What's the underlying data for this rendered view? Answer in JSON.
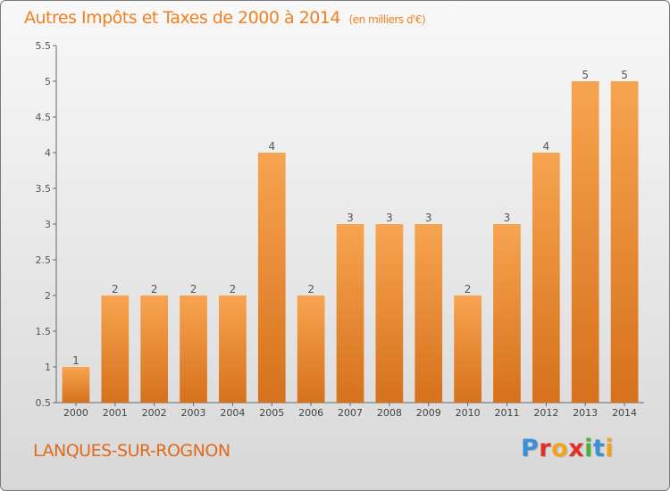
{
  "title": {
    "main": "Autres Impôts et Taxes de 2000 à 2014",
    "unit": "(en milliers d'€)"
  },
  "place_name": "LANQUES-SUR-ROGNON",
  "logo": {
    "letters": [
      "P",
      "r",
      "o",
      "x",
      "i",
      "t",
      "i"
    ],
    "colors": [
      "#3a8fd6",
      "#e0302a",
      "#f3a21c",
      "#e0302a",
      "#4caf3a",
      "#3a8fd6",
      "#f3a21c"
    ]
  },
  "colors": {
    "bar_top": "#f7a450",
    "bar_bottom": "#d6711c",
    "title": "#f08020"
  },
  "chart_data": {
    "type": "bar",
    "categories": [
      "2000",
      "2001",
      "2002",
      "2003",
      "2004",
      "2005",
      "2006",
      "2007",
      "2008",
      "2009",
      "2010",
      "2011",
      "2012",
      "2013",
      "2014"
    ],
    "values": [
      1,
      2,
      2,
      2,
      2,
      4,
      2,
      3,
      3,
      3,
      2,
      3,
      4,
      5,
      5
    ],
    "data_labels": [
      "1",
      "2",
      "2",
      "2",
      "2",
      "4",
      "2",
      "3",
      "3",
      "3",
      "2",
      "3",
      "4",
      "5",
      "5"
    ],
    "ylim": [
      0.5,
      5.5
    ],
    "yticks": [
      0.5,
      1,
      1.5,
      2,
      2.5,
      3,
      3.5,
      4,
      4.5,
      5,
      5.5
    ],
    "ytick_labels": [
      "0.5",
      "1",
      "1.5",
      "2",
      "2.5",
      "3",
      "3.5",
      "4",
      "4.5",
      "5",
      "5.5"
    ],
    "grid": false,
    "legend": "none"
  }
}
